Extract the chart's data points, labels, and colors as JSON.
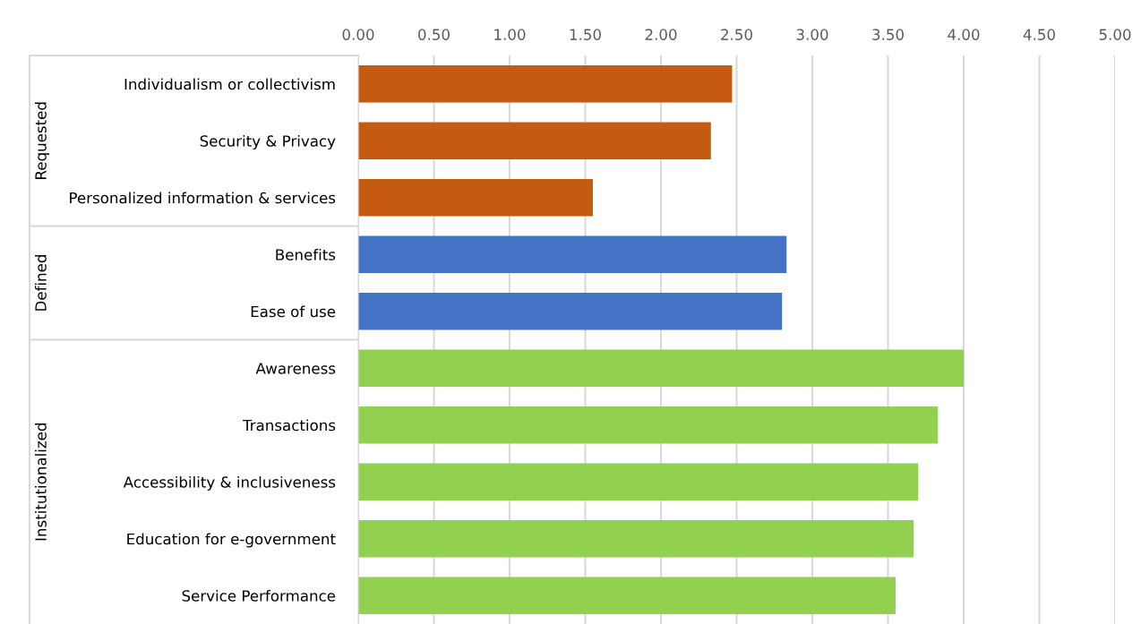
{
  "chart_data": {
    "type": "bar",
    "orientation": "horizontal",
    "stacked": true,
    "categories": [
      "Individualism or collectivism",
      "Security & Privacy",
      "Personalized information & services",
      "Benefits",
      "Ease of use",
      "Awareness",
      "Transactions",
      "Accessibility & inclusiveness",
      "Education for e-government",
      "Service Performance"
    ],
    "series": [
      {
        "color": "#c55a11",
        "values": [
          2.47,
          2.33,
          1.55,
          null,
          null,
          null,
          null,
          null,
          null,
          null
        ]
      },
      {
        "color": "#4472c4",
        "values": [
          null,
          null,
          null,
          2.83,
          2.8,
          null,
          null,
          null,
          null,
          null
        ]
      },
      {
        "color": "#92d050",
        "values": [
          null,
          null,
          null,
          null,
          null,
          4.0,
          3.83,
          3.7,
          3.67,
          3.55
        ]
      }
    ],
    "xlim": [
      0,
      5
    ],
    "xticks": [
      {
        "value": 0,
        "label": "0.00"
      },
      {
        "value": 0.5,
        "label": "0.50"
      },
      {
        "value": 1,
        "label": "1.00"
      },
      {
        "value": 1.5,
        "label": "1.50"
      },
      {
        "value": 2,
        "label": "2.00"
      },
      {
        "value": 2.5,
        "label": "2.50"
      },
      {
        "value": 3,
        "label": "3.00"
      },
      {
        "value": 3.5,
        "label": "3.50"
      },
      {
        "value": 4,
        "label": "4.00"
      },
      {
        "value": 4.5,
        "label": "4.50"
      },
      {
        "value": 5,
        "label": "5.00"
      }
    ],
    "annotations": [
      "Requested",
      "Defined",
      "Institutionalized"
    ],
    "grid": "x",
    "legend": false
  }
}
